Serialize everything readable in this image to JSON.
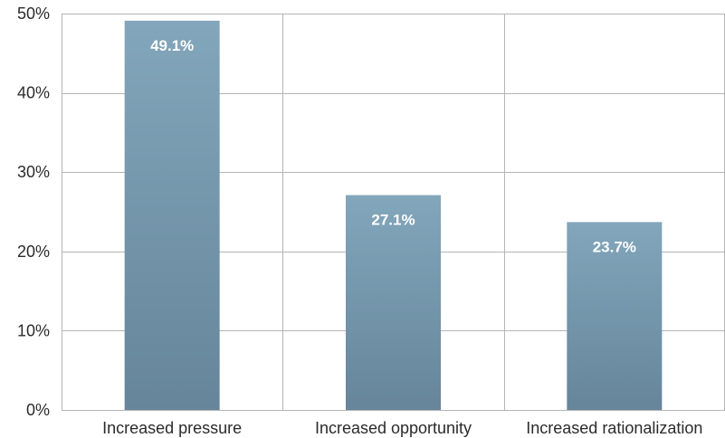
{
  "chart_data": {
    "type": "bar",
    "categories": [
      "Increased pressure",
      "Increased opportunity",
      "Increased rationalization"
    ],
    "series": [
      {
        "values": [
          49.1,
          27.1,
          23.7
        ]
      }
    ],
    "data_labels": [
      "49.1%",
      "27.1%",
      "23.7%"
    ],
    "y_ticks": [
      {
        "value": 0,
        "label": "0%"
      },
      {
        "value": 10,
        "label": "10%"
      },
      {
        "value": 20,
        "label": "20%"
      },
      {
        "value": 30,
        "label": "30%"
      },
      {
        "value": 40,
        "label": "40%"
      },
      {
        "value": 50,
        "label": "50%"
      }
    ],
    "ylim": [
      0,
      50
    ],
    "grid": true,
    "title": "",
    "xlabel": "",
    "ylabel": "",
    "colors": {
      "bar_top": "#82a6bb",
      "bar_bottom": "#66859a",
      "grid": "#b5b5b5",
      "label_text": "#ffffff",
      "axis_text": "#2b2b2b"
    }
  }
}
